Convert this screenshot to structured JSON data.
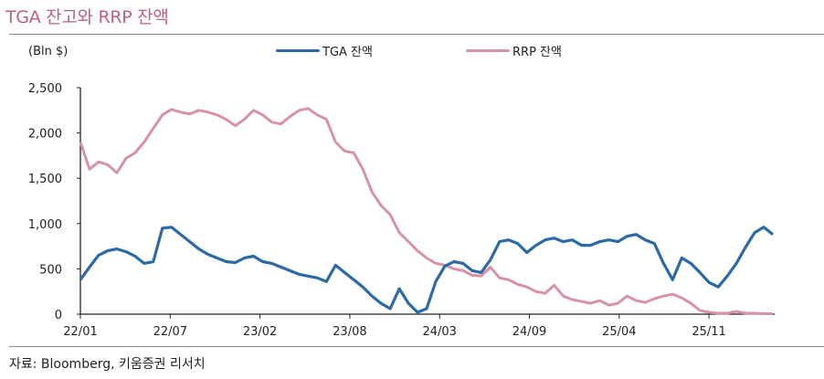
{
  "header": {
    "title": "TGA 잔고와 RRP 잔액",
    "unit_label": "(Bln $)"
  },
  "legend": [
    {
      "label": "TGA 잔액",
      "color": "#2b6aa6"
    },
    {
      "label": "RRP 잔액",
      "color": "#d792a8"
    }
  ],
  "footer": {
    "source": "자료: Bloomberg, 키움증권 리서치"
  },
  "chart_data": {
    "type": "line",
    "title": "TGA 잔고와 RRP 잔액",
    "xlabel": "",
    "ylabel": "(Bln $)",
    "ylim": [
      0,
      2500
    ],
    "yticks": [
      0,
      500,
      1000,
      1500,
      2000,
      2500
    ],
    "ytick_labels": [
      "0",
      "500",
      "1,000",
      "1,500",
      "2,000",
      "2,500"
    ],
    "xtick_labels": [
      "22/01",
      "22/07",
      "23/02",
      "23/08",
      "24/03",
      "24/09",
      "25/04",
      "25/11"
    ],
    "grid": false,
    "legend_position": "top",
    "x_index_note": "x is a uniform time index 0..76 spanning 22/01 to ~26/01; xtick i sits at index i*9.85",
    "series": [
      {
        "name": "TGA 잔액",
        "color": "#2b6aa6",
        "values": [
          380,
          520,
          650,
          700,
          720,
          690,
          640,
          560,
          580,
          950,
          960,
          880,
          800,
          720,
          660,
          620,
          580,
          570,
          620,
          640,
          580,
          560,
          520,
          480,
          440,
          420,
          400,
          360,
          540,
          460,
          380,
          300,
          200,
          120,
          60,
          280,
          120,
          20,
          60,
          360,
          530,
          580,
          560,
          480,
          460,
          600,
          800,
          820,
          780,
          680,
          760,
          820,
          840,
          800,
          820,
          760,
          760,
          800,
          820,
          800,
          860,
          880,
          820,
          780,
          560,
          380,
          620,
          560,
          460,
          350,
          300,
          420,
          560,
          740,
          900,
          960,
          880
        ]
      },
      {
        "name": "RRP 잔액",
        "color": "#d792a8",
        "values": [
          1900,
          1600,
          1680,
          1650,
          1560,
          1720,
          1780,
          1900,
          2050,
          2200,
          2260,
          2230,
          2210,
          2250,
          2230,
          2200,
          2150,
          2080,
          2150,
          2250,
          2200,
          2120,
          2100,
          2180,
          2250,
          2270,
          2200,
          2150,
          1900,
          1800,
          1780,
          1600,
          1350,
          1200,
          1100,
          900,
          800,
          700,
          620,
          560,
          540,
          500,
          480,
          430,
          420,
          520,
          400,
          380,
          330,
          300,
          250,
          230,
          320,
          200,
          160,
          140,
          120,
          150,
          100,
          120,
          200,
          150,
          130,
          170,
          200,
          220,
          180,
          120,
          40,
          20,
          10,
          10,
          30,
          10,
          10,
          5,
          5
        ]
      }
    ]
  }
}
